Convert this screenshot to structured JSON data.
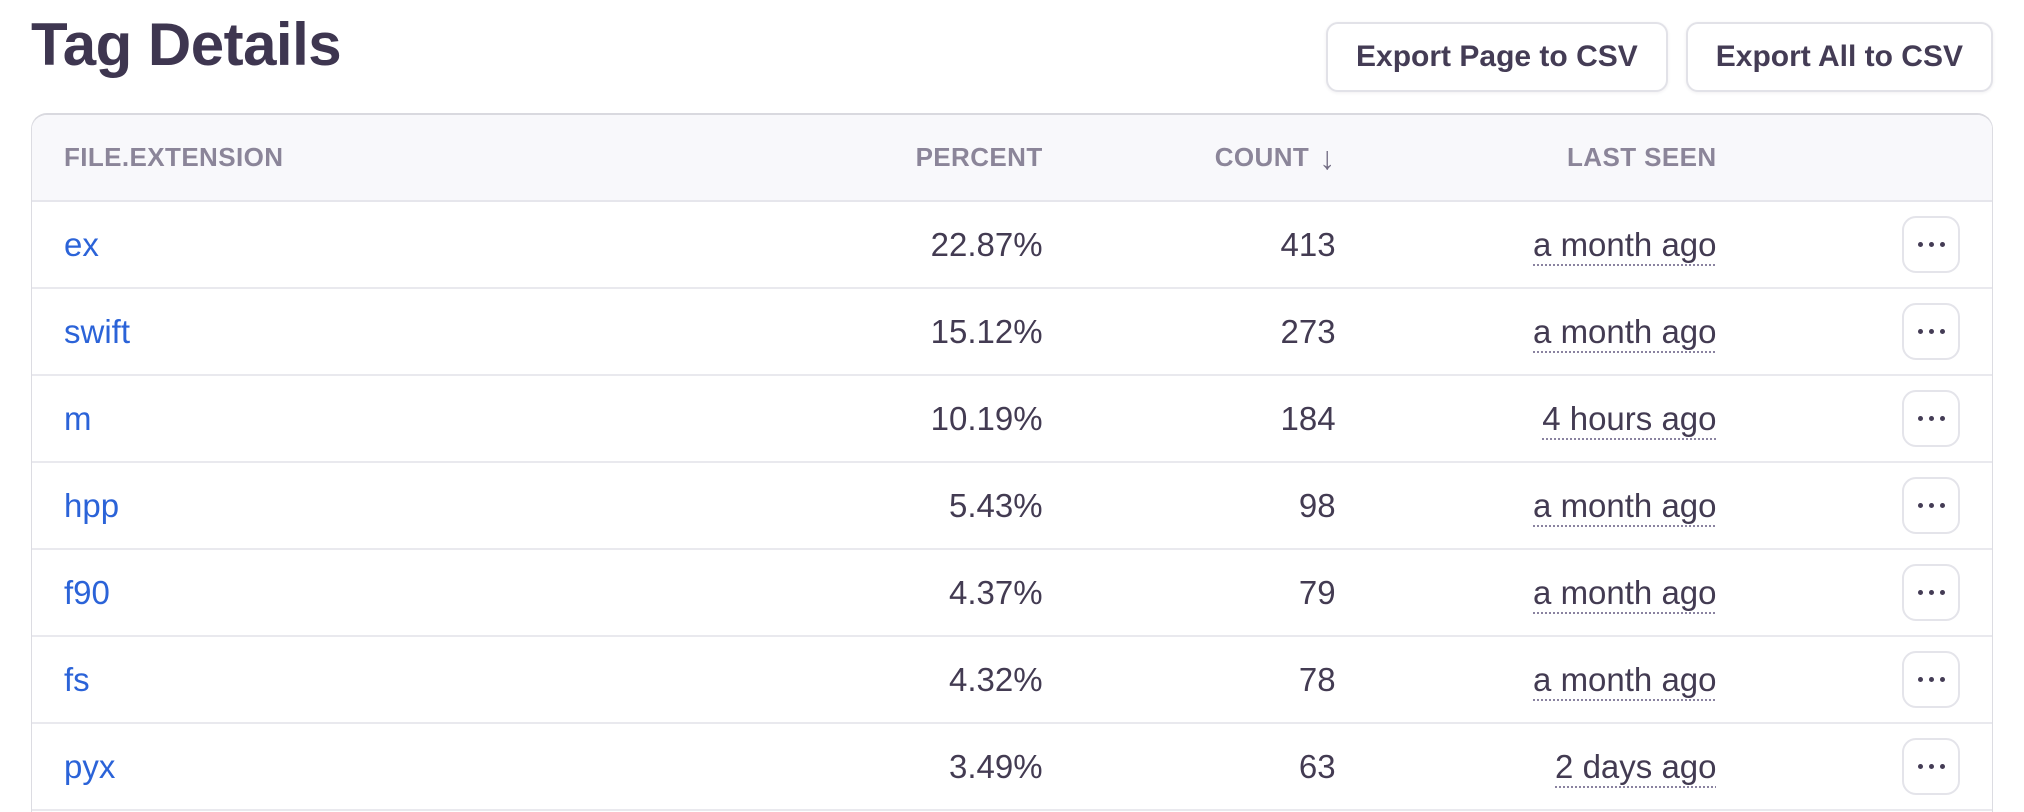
{
  "page": {
    "title": "Tag Details"
  },
  "toolbar": {
    "export_page_label": "Export Page to CSV",
    "export_all_label": "Export All to CSV"
  },
  "table": {
    "columns": [
      {
        "key": "extension",
        "label": "FILE.EXTENSION"
      },
      {
        "key": "percent",
        "label": "PERCENT"
      },
      {
        "key": "count",
        "label": "COUNT",
        "sorted": "desc"
      },
      {
        "key": "last_seen",
        "label": "LAST SEEN"
      }
    ],
    "sort_icon": "↓",
    "row_menu_icon": "ellipsis",
    "rows": [
      {
        "extension": "ex",
        "percent": "22.87%",
        "count": "413",
        "last_seen": "a month ago"
      },
      {
        "extension": "swift",
        "percent": "15.12%",
        "count": "273",
        "last_seen": "a month ago"
      },
      {
        "extension": "m",
        "percent": "10.19%",
        "count": "184",
        "last_seen": "4 hours ago"
      },
      {
        "extension": "hpp",
        "percent": "5.43%",
        "count": "98",
        "last_seen": "a month ago"
      },
      {
        "extension": "f90",
        "percent": "4.37%",
        "count": "79",
        "last_seen": "a month ago"
      },
      {
        "extension": "fs",
        "percent": "4.32%",
        "count": "78",
        "last_seen": "a month ago"
      },
      {
        "extension": "pyx",
        "percent": "3.49%",
        "count": "63",
        "last_seen": "2 days ago"
      }
    ]
  },
  "colors": {
    "link_blue": "#2b63d8",
    "text_dark": "#433b52",
    "title": "#3e3650",
    "header_muted": "#8b8599",
    "header_bg": "#f8f8fb",
    "border": "#e6e6ec"
  }
}
